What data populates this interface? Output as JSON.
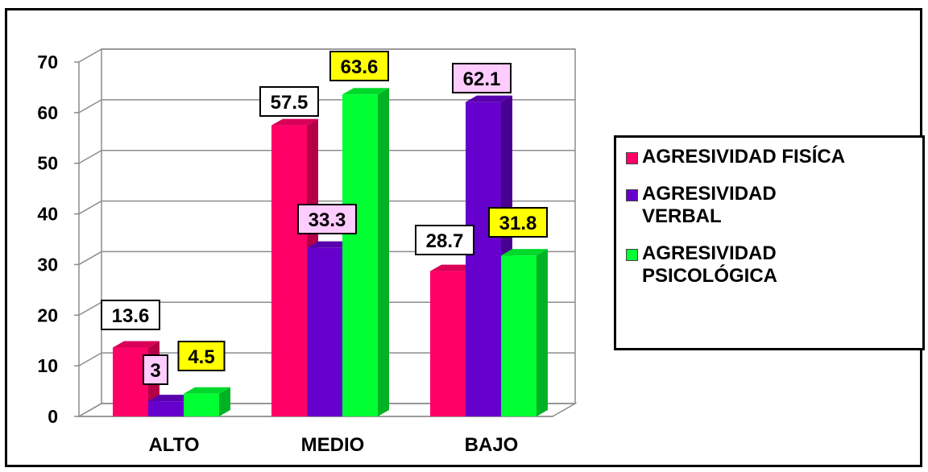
{
  "colors": {
    "fisica": "#ff0066",
    "verbal": "#6600cc",
    "psicologica": "#00ff33",
    "label_box_fisica": "#ffffff",
    "label_box_verbal": "#ffccff",
    "label_box_psicologica": "#ffff00"
  },
  "legend": {
    "items": [
      {
        "label": "AGRESIVIDAD FISÍCA",
        "color": "#ff0066"
      },
      {
        "label": "AGRESIVIDAD\nVERBAL",
        "color": "#6600cc"
      },
      {
        "label": "AGRESIVIDAD\nPSICOLÓGICA",
        "color": "#00ff33"
      }
    ]
  },
  "chart_data": {
    "type": "bar",
    "categories": [
      "ALTO",
      "MEDIO",
      "BAJO"
    ],
    "series": [
      {
        "name": "AGRESIVIDAD FISÍCA",
        "values": [
          13.6,
          57.5,
          28.7
        ],
        "labels": [
          "13.6",
          "57.5",
          "28.7"
        ]
      },
      {
        "name": "AGRESIVIDAD VERBAL",
        "values": [
          3,
          33.3,
          62.1
        ],
        "labels": [
          "3",
          "33.3",
          "62.1"
        ]
      },
      {
        "name": "AGRESIVIDAD PSICOLÓGICA",
        "values": [
          4.5,
          63.6,
          31.8
        ],
        "labels": [
          "4.5",
          "63.6",
          "31.8"
        ]
      }
    ],
    "yticks": [
      "0",
      "10",
      "20",
      "30",
      "40",
      "50",
      "60",
      "70"
    ],
    "ylim": [
      0,
      70
    ],
    "grid": true,
    "legend_position": "right",
    "style": "3d"
  }
}
